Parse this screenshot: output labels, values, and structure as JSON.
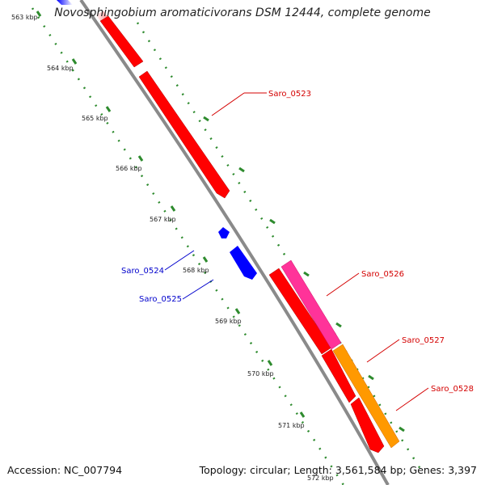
{
  "title": "Novosphingobium aromaticivorans DSM 12444, complete genome",
  "footer": {
    "accession": "Accession: NC_007794",
    "summary": "Topology: circular; Length: 3,561,584 bp; Genes: 3,397"
  },
  "ticks": [
    "563 kbp",
    "564 kbp",
    "565 kbp",
    "566 kbp",
    "567 kbp",
    "568 kbp",
    "569 kbp",
    "570 kbp",
    "571 kbp",
    "572 kbp"
  ],
  "genes": [
    {
      "label": "Saro_0523",
      "color": "#d40000"
    },
    {
      "label": "Saro_0524",
      "color": "#0000cc"
    },
    {
      "label": "Saro_0525",
      "color": "#0000cc"
    },
    {
      "label": "Saro_0526",
      "color": "#d40000"
    },
    {
      "label": "Saro_0527",
      "color": "#d40000"
    },
    {
      "label": "Saro_0528",
      "color": "#d40000"
    }
  ],
  "colors": {
    "forward_cds": "#ff0000",
    "reverse_cds": "#0000ff",
    "pink_feature": "#ff3399",
    "orange_feature": "#ff9900",
    "backbone": "#8a8a8a",
    "tick": "#2e8b2e"
  }
}
